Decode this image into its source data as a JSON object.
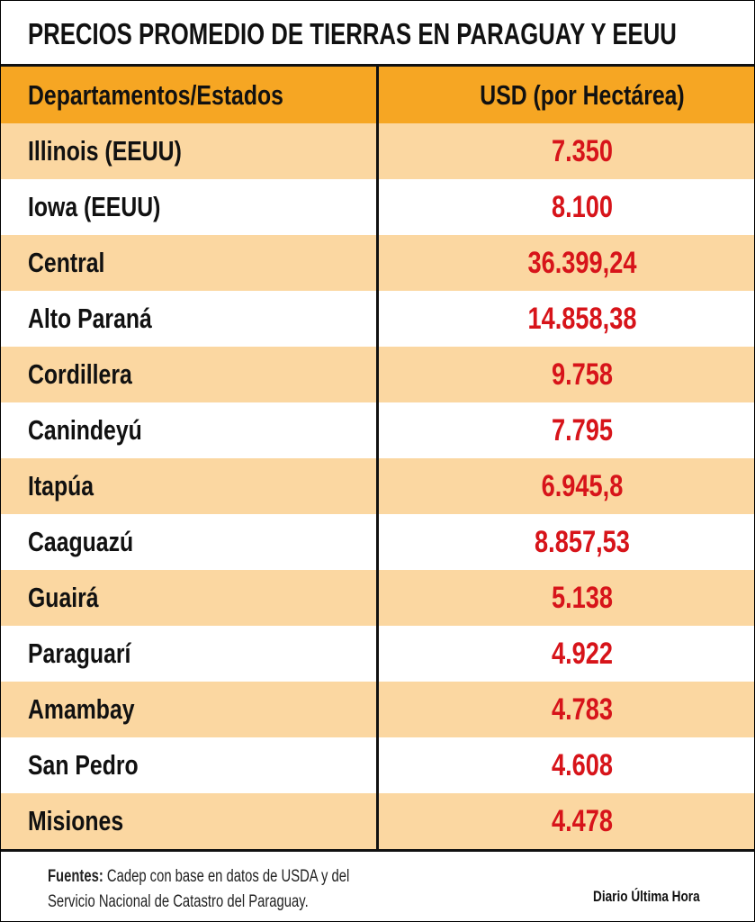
{
  "header": {
    "title": "PRECIOS PROMEDIO DE TIERRAS EN PARAGUAY Y EEUU"
  },
  "table": {
    "columns": [
      "Departamentos/Estados",
      "USD (por Hectárea)"
    ],
    "rows": [
      [
        "Illinois (EEUU)",
        "7.350"
      ],
      [
        "Iowa (EEUU)",
        "8.100"
      ],
      [
        "Central",
        "36.399,24"
      ],
      [
        "Alto Paraná",
        "14.858,38"
      ],
      [
        "Cordillera",
        "9.758"
      ],
      [
        "Canindeyú",
        "7.795"
      ],
      [
        "Itapúa",
        "6.945,8"
      ],
      [
        "Caaguazú",
        "8.857,53"
      ],
      [
        "Guairá",
        "5.138"
      ],
      [
        "Paraguarí",
        "4.922"
      ],
      [
        "Amambay",
        "4.783"
      ],
      [
        "San Pedro",
        "4.608"
      ],
      [
        "Misiones",
        "4.478"
      ]
    ]
  },
  "footer": {
    "source_label": "Fuentes:",
    "source_text": "Cadep con base en datos de USDA y del Servicio Nacional de Catastro del Paraguay.",
    "credit": "Diario Última Hora"
  }
}
